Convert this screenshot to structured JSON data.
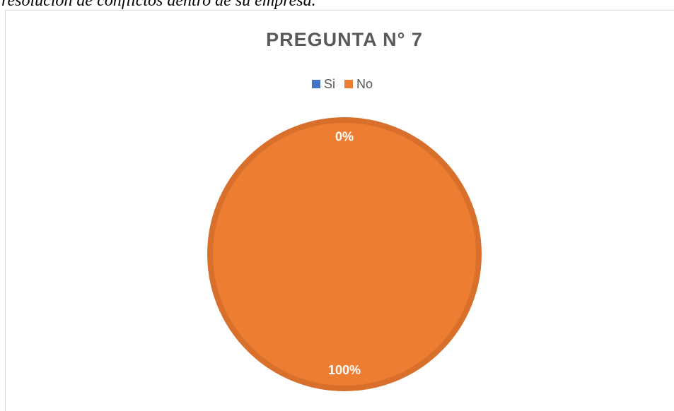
{
  "caption": "resolución de conflictos dentro de su empresa.",
  "chart_data": {
    "type": "pie",
    "title": "PREGUNTA N° 7",
    "categories": [
      "Si",
      "No"
    ],
    "values": [
      0,
      100
    ],
    "value_labels": [
      "0%",
      "100%"
    ],
    "colors": [
      "#4472c4",
      "#ed7d31"
    ],
    "legend": "top"
  }
}
